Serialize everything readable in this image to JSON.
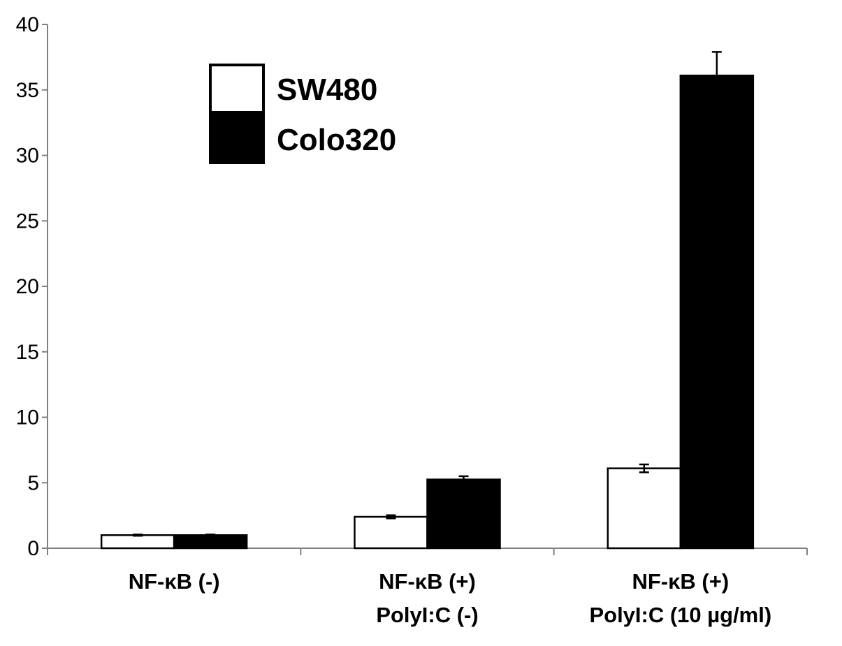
{
  "chart_data": {
    "type": "bar",
    "title": "",
    "xlabel": "",
    "ylabel": "",
    "ylim": [
      0,
      40
    ],
    "yticks": [
      0,
      5,
      10,
      15,
      20,
      25,
      30,
      35,
      40
    ],
    "categories": [
      [
        "NF-κB (-)"
      ],
      [
        "NF-κB (+)",
        "PolyI:C (-)"
      ],
      [
        "NF-κB (+)",
        "PolyI:C (10 µg/ml)"
      ]
    ],
    "series": [
      {
        "name": "SW480",
        "color": "#ffffff",
        "values": [
          1.0,
          2.4,
          6.1
        ],
        "errors": [
          0.05,
          0.12,
          0.3
        ]
      },
      {
        "name": "Colo320",
        "color": "#000000",
        "values": [
          1.0,
          5.25,
          36.1
        ],
        "errors": [
          0.05,
          0.25,
          1.8
        ]
      }
    ],
    "legend_position": "top-left",
    "grid": false
  }
}
